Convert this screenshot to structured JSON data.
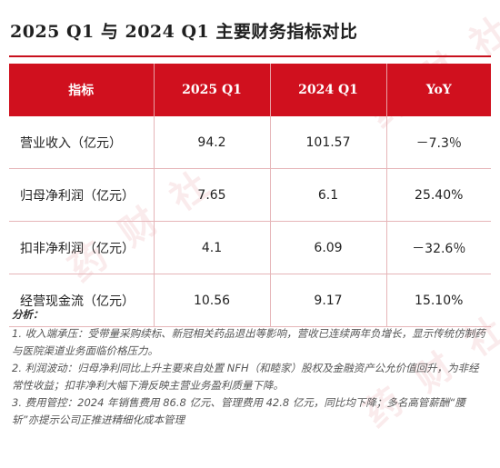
{
  "title": "2025 Q1 与 2024 Q1 主要财务指标对比",
  "table": {
    "headers": [
      "指标",
      "2025 Q1",
      "2024 Q1",
      "YoY"
    ],
    "rows": [
      {
        "label": "营业收入（亿元）",
        "q1_2025": "94.2",
        "q1_2024": "101.57",
        "yoy": "－7.3％"
      },
      {
        "label": "归母净利润（亿元）",
        "q1_2025": "7.65",
        "q1_2024": "6.1",
        "yoy": "25.40%"
      },
      {
        "label": "扣非净利润（亿元）",
        "q1_2025": "4.1",
        "q1_2024": "6.09",
        "yoy": "－32.6％"
      },
      {
        "label": "经营现金流（亿元）",
        "q1_2025": "10.56",
        "q1_2024": "9.17",
        "yoy": "15.10%"
      }
    ]
  },
  "analysis": {
    "heading": "分析：",
    "points": [
      "1. 收入端承压：受带量采购续标、新冠相关药品退出等影响，营收已连续两年负增长，显示传统仿制药与医院渠道业务面临价格压力。",
      "2. 利润波动：归母净利同比上升主要来自处置 NFH（和睦家）股权及金融资产公允价值回升，为非经常性收益；扣非净利大幅下滑反映主营业务盈利质量下降。",
      "3. 费用管控：2024 年销售费用 86.8 亿元、管理费用 42.8 亿元，同比均下降；多名高管薪酬“腰斩”亦提示公司正推进精细化成本管理"
    ]
  },
  "watermark": "药财社",
  "colors": {
    "header_bg": "#d0101e",
    "header_text": "#ffffff",
    "accent_rule": "#c8101d"
  }
}
